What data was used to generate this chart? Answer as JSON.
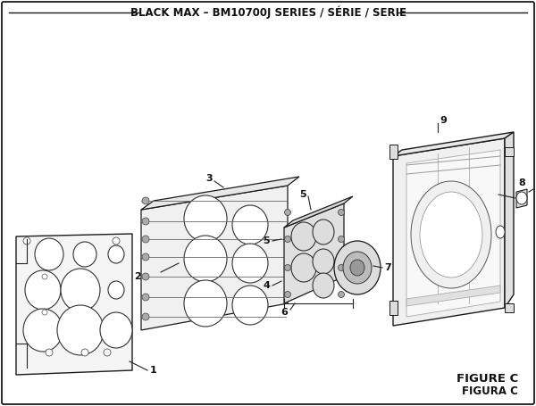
{
  "title": "BLACK MAX – BM10700J SERIES / SÉRIE / SERIE",
  "figure_label1": "FIGURE C",
  "figure_label2": "FIGURA C",
  "bg_color": "#ffffff",
  "lc": "#1a1a1a",
  "tc": "#111111",
  "title_fontsize": 8.5,
  "label_fontsize": 8.0,
  "fig_label_fontsize": 9.5
}
